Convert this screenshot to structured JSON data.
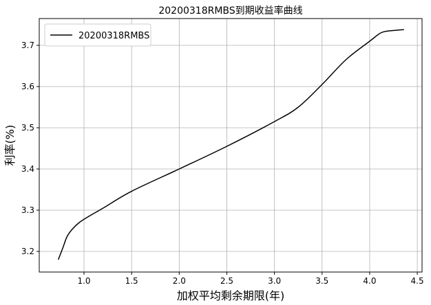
{
  "chart_data": {
    "type": "line",
    "title": "20200318RMBS到期收益率曲线",
    "xlabel": "加权平均剩余期限(年)",
    "ylabel": "利率(%)",
    "xlim": [
      0.53,
      4.55
    ],
    "ylim": [
      3.15,
      3.765
    ],
    "xticks": [
      1.0,
      1.5,
      2.0,
      2.5,
      3.0,
      3.5,
      4.0,
      4.5
    ],
    "xtick_labels": [
      "1.0",
      "1.5",
      "2.0",
      "2.5",
      "3.0",
      "3.5",
      "4.0",
      "4.5"
    ],
    "yticks": [
      3.2,
      3.3,
      3.4,
      3.5,
      3.6,
      3.7
    ],
    "ytick_labels": [
      "3.2",
      "3.3",
      "3.4",
      "3.5",
      "3.6",
      "3.7"
    ],
    "grid": true,
    "legend_position": "top-left",
    "series": [
      {
        "name": "20200318RMBS",
        "color": "#000000",
        "x": [
          0.73,
          0.78,
          0.82,
          0.87,
          0.95,
          1.05,
          1.2,
          1.5,
          2.0,
          2.5,
          3.0,
          3.25,
          3.5,
          3.75,
          4.0,
          4.1,
          4.15,
          4.2,
          4.3,
          4.36
        ],
        "y": [
          3.18,
          3.21,
          3.235,
          3.252,
          3.27,
          3.285,
          3.305,
          3.346,
          3.4,
          3.455,
          3.515,
          3.55,
          3.605,
          3.665,
          3.71,
          3.728,
          3.733,
          3.735,
          3.737,
          3.738
        ]
      }
    ]
  }
}
